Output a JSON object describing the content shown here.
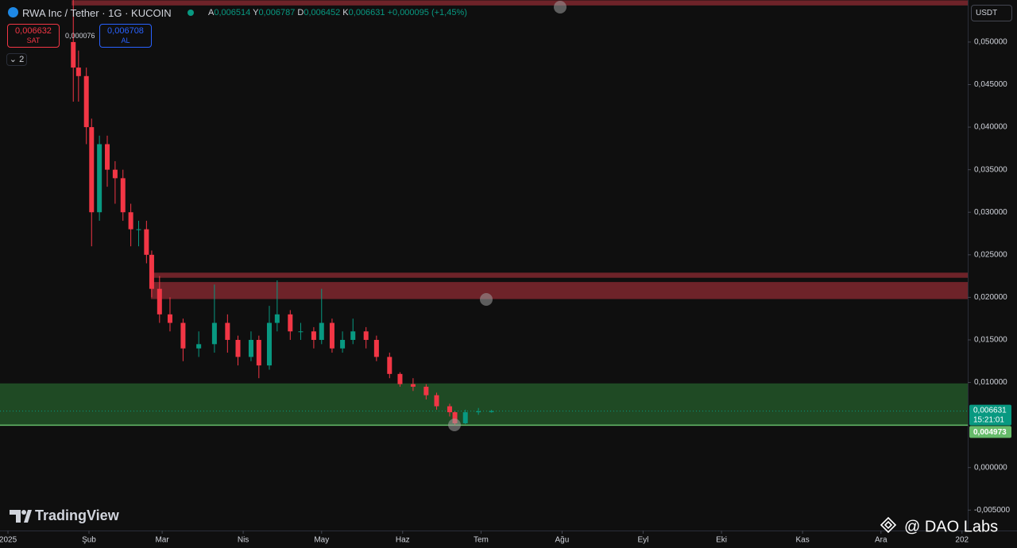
{
  "header": {
    "symbol": "RWA Inc / Tether · 1G · KUCOIN",
    "open_key": "A",
    "open_label": "0,006514",
    "high_key": "Y",
    "high_label": "0,006787",
    "low_key": "D",
    "low_label": "0,006452",
    "close_key": "K",
    "close_label": "0,006631",
    "change_label": "+0,000095 (+1,45%)",
    "sell_price": "0,006632",
    "sell_text": "SAT",
    "spread": "0,000076",
    "buy_price": "0,006708",
    "buy_text": "AL",
    "indicator_count": "2",
    "currency": "USDT",
    "brand": "TradingView",
    "watermark": "@ DAO Labs"
  },
  "chart_data": {
    "type": "candlestick",
    "up_color": "#089981",
    "down_color": "#f23645",
    "x": [
      25,
      27,
      30,
      32,
      35,
      38,
      41,
      44,
      47,
      50,
      53,
      55,
      58,
      62,
      67,
      73,
      79,
      84,
      88,
      93,
      96,
      100,
      103,
      108,
      112,
      117,
      120,
      124,
      128,
      132,
      137,
      141,
      146,
      150,
      155,
      160,
      164,
      169,
      171,
      175,
      180,
      185
    ],
    "open": [
      0.05,
      0.047,
      0.046,
      0.04,
      0.03,
      0.038,
      0.035,
      0.034,
      0.03,
      0.028,
      0.028,
      0.025,
      0.021,
      0.018,
      0.017,
      0.014,
      0.0145,
      0.017,
      0.015,
      0.013,
      0.015,
      0.012,
      0.017,
      0.018,
      0.016,
      0.016,
      0.015,
      0.017,
      0.014,
      0.015,
      0.016,
      0.015,
      0.013,
      0.011,
      0.0098,
      0.0095,
      0.0085,
      0.0072,
      0.0065,
      0.0052,
      0.0065,
      0.006514
    ],
    "high": [
      0.055,
      0.049,
      0.047,
      0.041,
      0.039,
      0.039,
      0.036,
      0.035,
      0.031,
      0.029,
      0.029,
      0.0255,
      0.0225,
      0.02,
      0.0175,
      0.016,
      0.0215,
      0.018,
      0.0155,
      0.016,
      0.0155,
      0.019,
      0.022,
      0.0185,
      0.017,
      0.0165,
      0.021,
      0.0175,
      0.016,
      0.0175,
      0.0165,
      0.0155,
      0.0135,
      0.0112,
      0.0105,
      0.0098,
      0.0088,
      0.0075,
      0.0066,
      0.0068,
      0.007,
      0.006787
    ],
    "low": [
      0.043,
      0.043,
      0.038,
      0.026,
      0.029,
      0.033,
      0.031,
      0.029,
      0.026,
      0.026,
      0.024,
      0.02,
      0.017,
      0.016,
      0.0125,
      0.013,
      0.0135,
      0.0135,
      0.012,
      0.0125,
      0.0105,
      0.0115,
      0.016,
      0.015,
      0.015,
      0.014,
      0.0145,
      0.0135,
      0.0135,
      0.0145,
      0.014,
      0.0125,
      0.0105,
      0.0095,
      0.009,
      0.008,
      0.0068,
      0.006,
      0.00497,
      0.0051,
      0.0062,
      0.006452
    ],
    "close": [
      0.047,
      0.046,
      0.04,
      0.03,
      0.038,
      0.035,
      0.034,
      0.03,
      0.028,
      0.028,
      0.025,
      0.021,
      0.018,
      0.017,
      0.014,
      0.0145,
      0.017,
      0.015,
      0.013,
      0.015,
      0.012,
      0.017,
      0.018,
      0.016,
      0.016,
      0.015,
      0.017,
      0.014,
      0.015,
      0.016,
      0.015,
      0.013,
      0.011,
      0.0098,
      0.0095,
      0.0085,
      0.0072,
      0.0065,
      0.0052,
      0.0065,
      0.0066,
      0.006631
    ],
    "xlim": [
      -3.04,
      367.2
    ],
    "xticks": [
      {
        "value": 0,
        "label": "2025"
      },
      {
        "value": 31,
        "label": "Şub"
      },
      {
        "value": 59,
        "label": "Mar"
      },
      {
        "value": 90,
        "label": "Nis"
      },
      {
        "value": 120,
        "label": "May"
      },
      {
        "value": 151,
        "label": "Haz"
      },
      {
        "value": 181,
        "label": "Tem"
      },
      {
        "value": 212,
        "label": "Ağu"
      },
      {
        "value": 243,
        "label": "Eyl"
      },
      {
        "value": 273,
        "label": "Eki"
      },
      {
        "value": 304,
        "label": "Kas"
      },
      {
        "value": 334,
        "label": "Ara"
      },
      {
        "value": 365,
        "label": "202"
      }
    ],
    "ylim": [
      -0.0074,
      0.05494
    ],
    "yticks": [
      {
        "value": 0.05,
        "label": "0,050000"
      },
      {
        "value": 0.045,
        "label": "0,045000"
      },
      {
        "value": 0.04,
        "label": "0,040000"
      },
      {
        "value": 0.035,
        "label": "0,035000"
      },
      {
        "value": 0.03,
        "label": "0,030000"
      },
      {
        "value": 0.025,
        "label": "0,025000"
      },
      {
        "value": 0.02,
        "label": "0,020000"
      },
      {
        "value": 0.015,
        "label": "0,015000"
      },
      {
        "value": 0.01,
        "label": "0,010000"
      },
      {
        "value": 0.0,
        "label": "0,000000"
      },
      {
        "value": -0.005,
        "label": "-0,005000"
      }
    ],
    "zones": [
      {
        "from": 0.0543,
        "to": 0.0549,
        "start": 24.4,
        "color": "#6e2329"
      },
      {
        "from": 0.0223,
        "to": 0.0229,
        "start": 54.7,
        "color": "#6e2329"
      },
      {
        "from": 0.0198,
        "to": 0.0218,
        "start": 54.7,
        "color": "#6e2329"
      },
      {
        "from": 0.00494,
        "to": 0.00989,
        "color": "#1f4a24"
      }
    ],
    "level": {
      "value": 0.004973,
      "label": "0,004973",
      "color": "#66bb6a"
    },
    "last_price_label": "0,006631",
    "countdown": "15:21:01"
  }
}
